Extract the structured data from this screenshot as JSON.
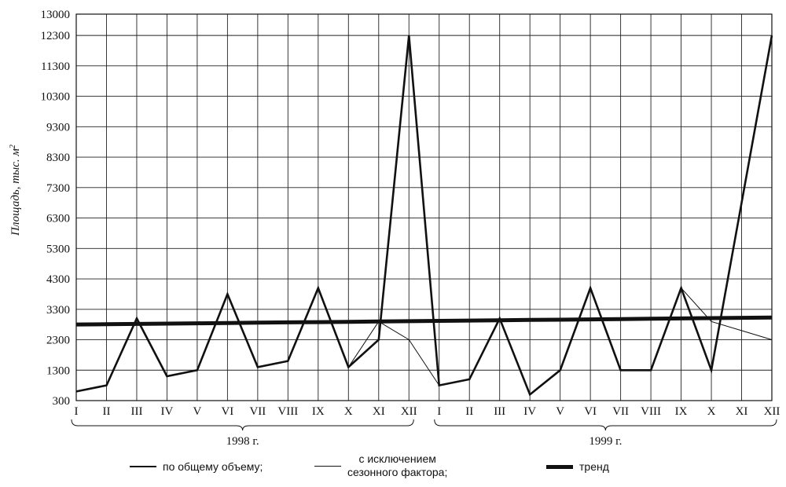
{
  "chart_data": {
    "type": "line",
    "title": "",
    "ylabel": "Площадь, тыс. м",
    "ylabel_sup": "2",
    "ylim": [
      300,
      13000
    ],
    "yticks": [
      300,
      1300,
      2300,
      3300,
      4300,
      5300,
      6300,
      7300,
      8300,
      9300,
      10300,
      11300,
      12300,
      13000
    ],
    "categories": [
      "I",
      "II",
      "III",
      "IV",
      "V",
      "VI",
      "VII",
      "VIII",
      "IX",
      "X",
      "XI",
      "XII",
      "I",
      "II",
      "III",
      "IV",
      "V",
      "VI",
      "VII",
      "VIII",
      "IX",
      "X",
      "XI",
      "XII"
    ],
    "year_groups": [
      {
        "label": "1998 г.",
        "start": 0,
        "end": 11
      },
      {
        "label": "1999 г.",
        "start": 12,
        "end": 23
      }
    ],
    "series": [
      {
        "name": "по общему объему;",
        "style": "medium",
        "values": [
          600,
          800,
          3000,
          1100,
          1300,
          3800,
          1400,
          1600,
          4000,
          1400,
          2300,
          12300,
          800,
          1000,
          3000,
          500,
          1300,
          4000,
          1300,
          1300,
          4000,
          1300,
          6800,
          12300
        ]
      },
      {
        "name": "с исключением сезонного фактора;",
        "style": "thin",
        "values": [
          600,
          800,
          3000,
          1100,
          1300,
          3800,
          1400,
          1600,
          4000,
          1400,
          2900,
          2300,
          800,
          1000,
          3000,
          500,
          1300,
          4000,
          1300,
          1300,
          4000,
          2900,
          2600,
          2300
        ]
      },
      {
        "name": "тренд",
        "style": "thick",
        "values": [
          2800,
          2810,
          2820,
          2830,
          2840,
          2850,
          2860,
          2870,
          2880,
          2890,
          2900,
          2910,
          2920,
          2930,
          2940,
          2950,
          2960,
          2970,
          2980,
          2990,
          3000,
          3010,
          3020,
          3030
        ]
      }
    ],
    "legend_placement": "bottom",
    "grid": true
  },
  "legend": {
    "item1": "по общему объему;",
    "item2_line1": "с исключением",
    "item2_line2": "сезонного фактора;",
    "item3": "тренд"
  }
}
